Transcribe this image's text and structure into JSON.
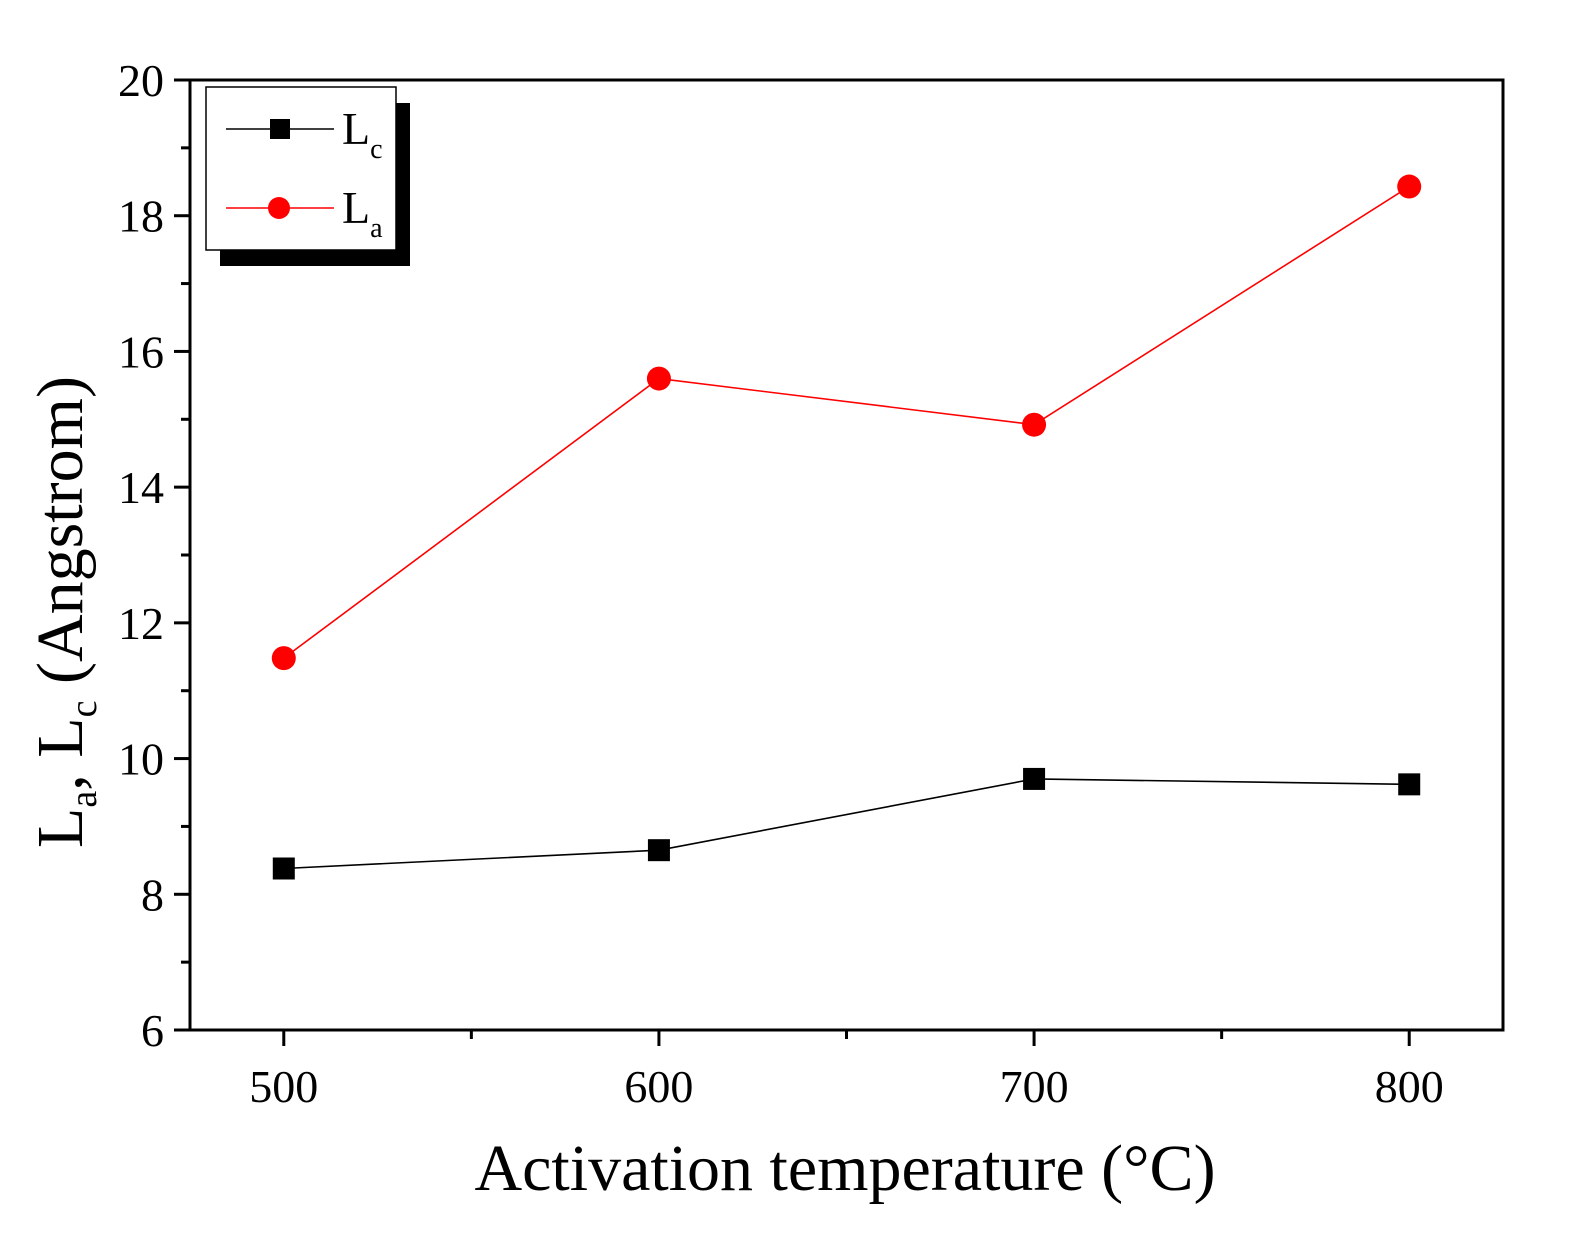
{
  "chart_data": {
    "type": "line",
    "title": "",
    "xlabel": "Activation temperature (°C)",
    "ylabel": {
      "parts": [
        "L",
        "a",
        ", L",
        "c",
        " (Angstrom)"
      ]
    },
    "x": [
      500,
      600,
      700,
      800
    ],
    "xlim": [
      475,
      825
    ],
    "ylim": [
      6,
      20
    ],
    "xticks": [
      "500",
      "600",
      "700",
      "800"
    ],
    "yticks": [
      "6",
      "8",
      "10",
      "12",
      "14",
      "16",
      "18",
      "20"
    ],
    "grid": false,
    "legend_position": "top-left",
    "series": [
      {
        "name": "Lc",
        "label_main": "L",
        "label_sub": "c",
        "marker": "square",
        "color": "#000000",
        "values": [
          8.38,
          8.65,
          9.7,
          9.62
        ]
      },
      {
        "name": "La",
        "label_main": "L",
        "label_sub": "a",
        "marker": "circle",
        "color": "#ff0000",
        "values": [
          11.48,
          15.6,
          14.92,
          18.43
        ]
      }
    ]
  }
}
